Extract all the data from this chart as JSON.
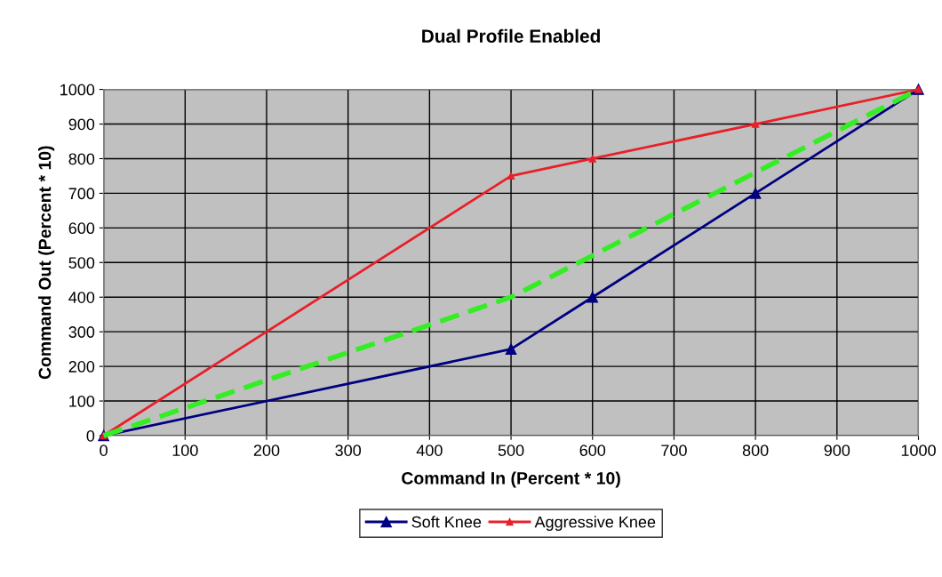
{
  "chart_data": {
    "type": "line",
    "title": "Dual Profile Enabled",
    "xlabel": "Command In (Percent * 10)",
    "ylabel": "Command Out (Percent * 10)",
    "xlim": [
      0,
      1000
    ],
    "ylim": [
      0,
      1000
    ],
    "xticks": [
      0,
      100,
      200,
      300,
      400,
      500,
      600,
      700,
      800,
      900,
      1000
    ],
    "yticks": [
      0,
      100,
      200,
      300,
      400,
      500,
      600,
      700,
      800,
      900,
      1000
    ],
    "grid": true,
    "legend": "bottom",
    "marker": "triangle",
    "series": [
      {
        "name": "Soft Knee",
        "color": "#000080",
        "x": [
          0,
          500,
          600,
          800,
          1000
        ],
        "values": [
          0,
          250,
          400,
          700,
          1000
        ]
      },
      {
        "name": "Aggressive Knee",
        "color": "#e8202a",
        "x": [
          0,
          500,
          600,
          800,
          1000
        ],
        "values": [
          0,
          750,
          800,
          900,
          1000
        ]
      },
      {
        "color": "#33ee22",
        "x": [
          0,
          500,
          1000
        ],
        "values": [
          0,
          400,
          1000
        ],
        "marker": "none",
        "line_style": "dashed"
      }
    ]
  }
}
